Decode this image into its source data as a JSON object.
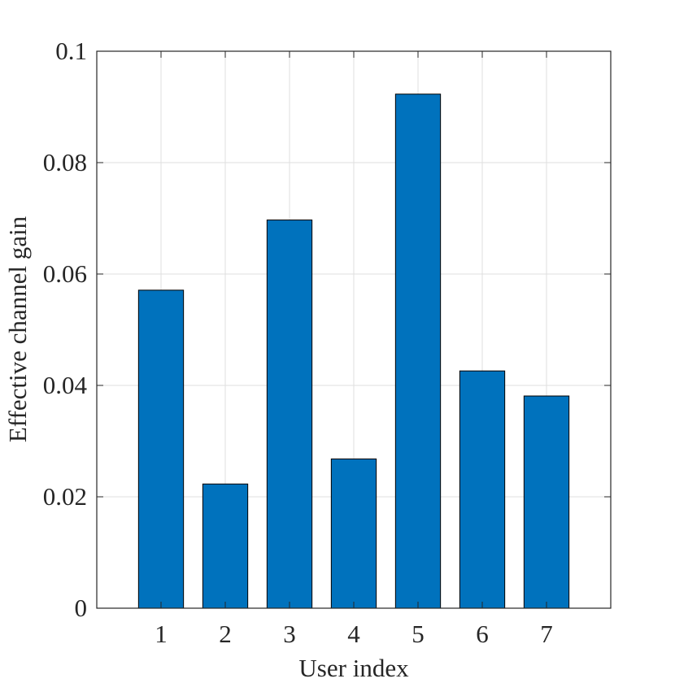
{
  "chart_data": {
    "type": "bar",
    "title": "",
    "xlabel": "User index",
    "ylabel": "Effective channel gain",
    "categories": [
      "1",
      "2",
      "3",
      "4",
      "5",
      "6",
      "7"
    ],
    "values": [
      0.0571,
      0.0223,
      0.0697,
      0.0268,
      0.0923,
      0.0426,
      0.0381
    ],
    "xlim": [
      0,
      8
    ],
    "ylim": [
      0,
      0.1
    ],
    "yticks": [
      "0",
      "0.02",
      "0.04",
      "0.06",
      "0.08",
      "0.1"
    ],
    "grid": true,
    "bar_color": "#0072BD",
    "bar_edge_color": "#000000",
    "grid_color": "#dfdfdf",
    "axis_color": "#262626"
  }
}
